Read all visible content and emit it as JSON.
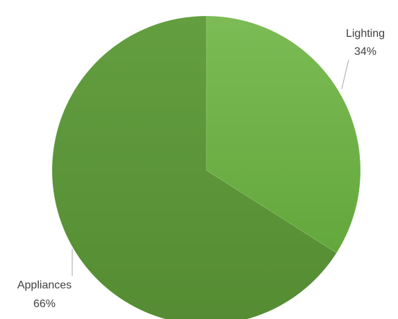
{
  "chart_data": {
    "type": "pie",
    "title": "",
    "slices": [
      {
        "label": "Lighting",
        "value": 34,
        "value_label": "34%",
        "color": "#6aad43"
      },
      {
        "label": "Appliances",
        "value": 66,
        "value_label": "66%",
        "color": "#5e9a3b"
      }
    ],
    "start_angle_deg": 0,
    "direction": "clockwise",
    "legend": "none",
    "data_labels": "outside-with-leader-lines"
  }
}
